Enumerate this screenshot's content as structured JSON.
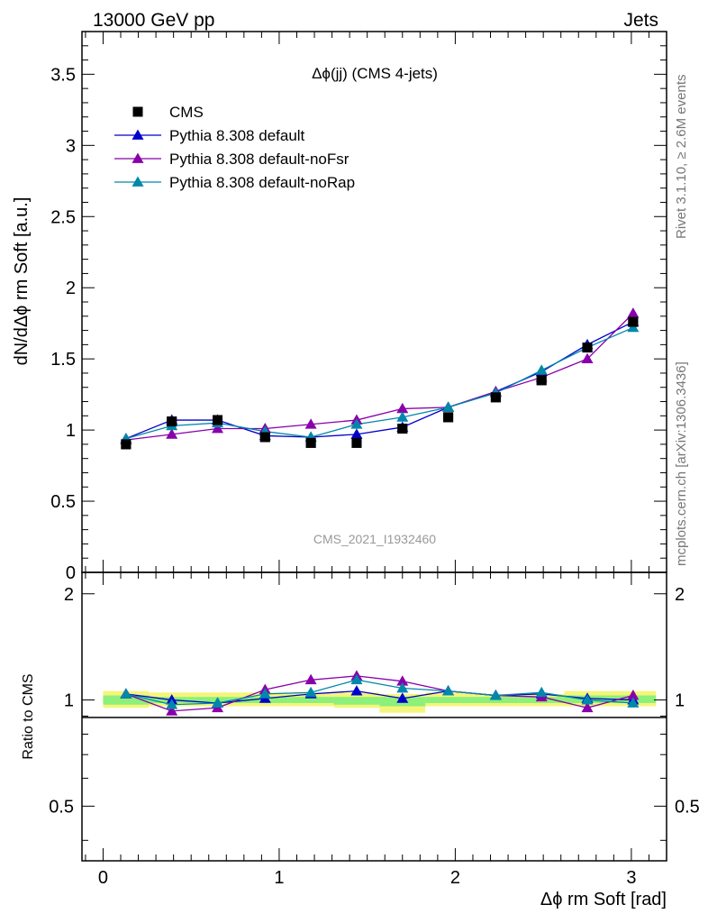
{
  "header": {
    "left": "13000 GeV pp",
    "right": "Jets"
  },
  "side": {
    "top": "Rivet 3.1.10, ≥ 2.6M events",
    "bottom": "mcplots.cern.ch [arXiv:1306.3436]"
  },
  "plot_title": "Δϕ(jj) (CMS 4-jets)",
  "watermark": "CMS_2021_I1932460",
  "colors": {
    "cms": "#000000",
    "default": "#0000cc",
    "noFsr": "#8800aa",
    "noRap": "#0088aa",
    "band_outer": "#f5f57a",
    "band_inner": "#8cf07a"
  },
  "chart_data": [
    {
      "type": "scatter",
      "panel": "main",
      "ylabel": "dN/dΔϕ rm Soft [a.u.]",
      "xlabel": "Δϕ rm Soft [rad]",
      "xlim": [
        -0.12,
        3.2
      ],
      "ylim": [
        0,
        3.8
      ],
      "yticks": [
        "0",
        "0.5",
        "1",
        "1.5",
        "2",
        "2.5",
        "3",
        "3.5"
      ],
      "x": [
        0.13,
        0.39,
        0.65,
        0.92,
        1.18,
        1.44,
        1.7,
        1.96,
        2.23,
        2.49,
        2.75,
        3.01
      ],
      "series": [
        {
          "name": "CMS",
          "values": [
            0.9,
            1.06,
            1.07,
            0.95,
            0.91,
            0.91,
            1.01,
            1.09,
            1.23,
            1.35,
            1.58,
            1.76
          ]
        },
        {
          "name": "Pythia 8.308 default",
          "values": [
            0.94,
            1.07,
            1.07,
            0.96,
            0.95,
            0.97,
            1.02,
            1.16,
            1.27,
            1.41,
            1.6,
            1.76
          ]
        },
        {
          "name": "Pythia 8.308 default-noFsr",
          "values": [
            0.93,
            0.97,
            1.01,
            1.01,
            1.04,
            1.07,
            1.15,
            1.16,
            1.27,
            1.37,
            1.5,
            1.82
          ]
        },
        {
          "name": "Pythia 8.308 default-noRap",
          "values": [
            0.94,
            1.03,
            1.05,
            0.99,
            0.95,
            1.04,
            1.09,
            1.16,
            1.26,
            1.42,
            1.58,
            1.72
          ]
        }
      ]
    },
    {
      "type": "line",
      "panel": "ratio",
      "ylabel": "Ratio to CMS",
      "xlim": [
        -0.12,
        3.2
      ],
      "ylim": [
        0.35,
        2.3
      ],
      "yticks": [
        "0.5",
        "1",
        "2"
      ],
      "xticks": [
        "0",
        "1",
        "2",
        "3"
      ],
      "x": [
        0.13,
        0.39,
        0.65,
        0.92,
        1.18,
        1.44,
        1.7,
        1.96,
        2.23,
        2.49,
        2.75,
        3.01
      ],
      "band_edges": [
        0,
        0.26,
        0.52,
        0.79,
        1.05,
        1.31,
        1.57,
        1.83,
        2.09,
        2.36,
        2.62,
        2.88,
        3.14
      ],
      "band_outer": [
        [
          0.95,
          1.06
        ],
        [
          0.96,
          1.05
        ],
        [
          0.96,
          1.05
        ],
        [
          0.96,
          1.05
        ],
        [
          0.96,
          1.05
        ],
        [
          0.95,
          1.05
        ],
        [
          0.92,
          1.04
        ],
        [
          0.96,
          1.05
        ],
        [
          0.96,
          1.04
        ],
        [
          0.96,
          1.04
        ],
        [
          0.96,
          1.06
        ],
        [
          0.96,
          1.06
        ]
      ],
      "band_inner": [
        [
          0.97,
          1.03
        ],
        [
          0.98,
          1.02
        ],
        [
          0.98,
          1.02
        ],
        [
          0.98,
          1.02
        ],
        [
          0.98,
          1.02
        ],
        [
          0.97,
          1.02
        ],
        [
          0.96,
          1.02
        ],
        [
          0.98,
          1.02
        ],
        [
          0.98,
          1.02
        ],
        [
          0.98,
          1.02
        ],
        [
          0.98,
          1.03
        ],
        [
          0.98,
          1.03
        ]
      ],
      "series": [
        {
          "name": "Pythia 8.308 default",
          "values": [
            1.04,
            1.0,
            0.98,
            1.01,
            1.04,
            1.06,
            1.01,
            1.06,
            1.03,
            1.04,
            1.01,
            1.0
          ]
        },
        {
          "name": "Pythia 8.308 default-noFsr",
          "values": [
            1.04,
            0.93,
            0.95,
            1.07,
            1.14,
            1.17,
            1.13,
            1.06,
            1.03,
            1.02,
            0.95,
            1.03
          ]
        },
        {
          "name": "Pythia 8.308 default-noRap",
          "values": [
            1.04,
            0.97,
            0.98,
            1.04,
            1.05,
            1.14,
            1.08,
            1.06,
            1.03,
            1.05,
            1.0,
            0.98
          ]
        }
      ]
    }
  ]
}
